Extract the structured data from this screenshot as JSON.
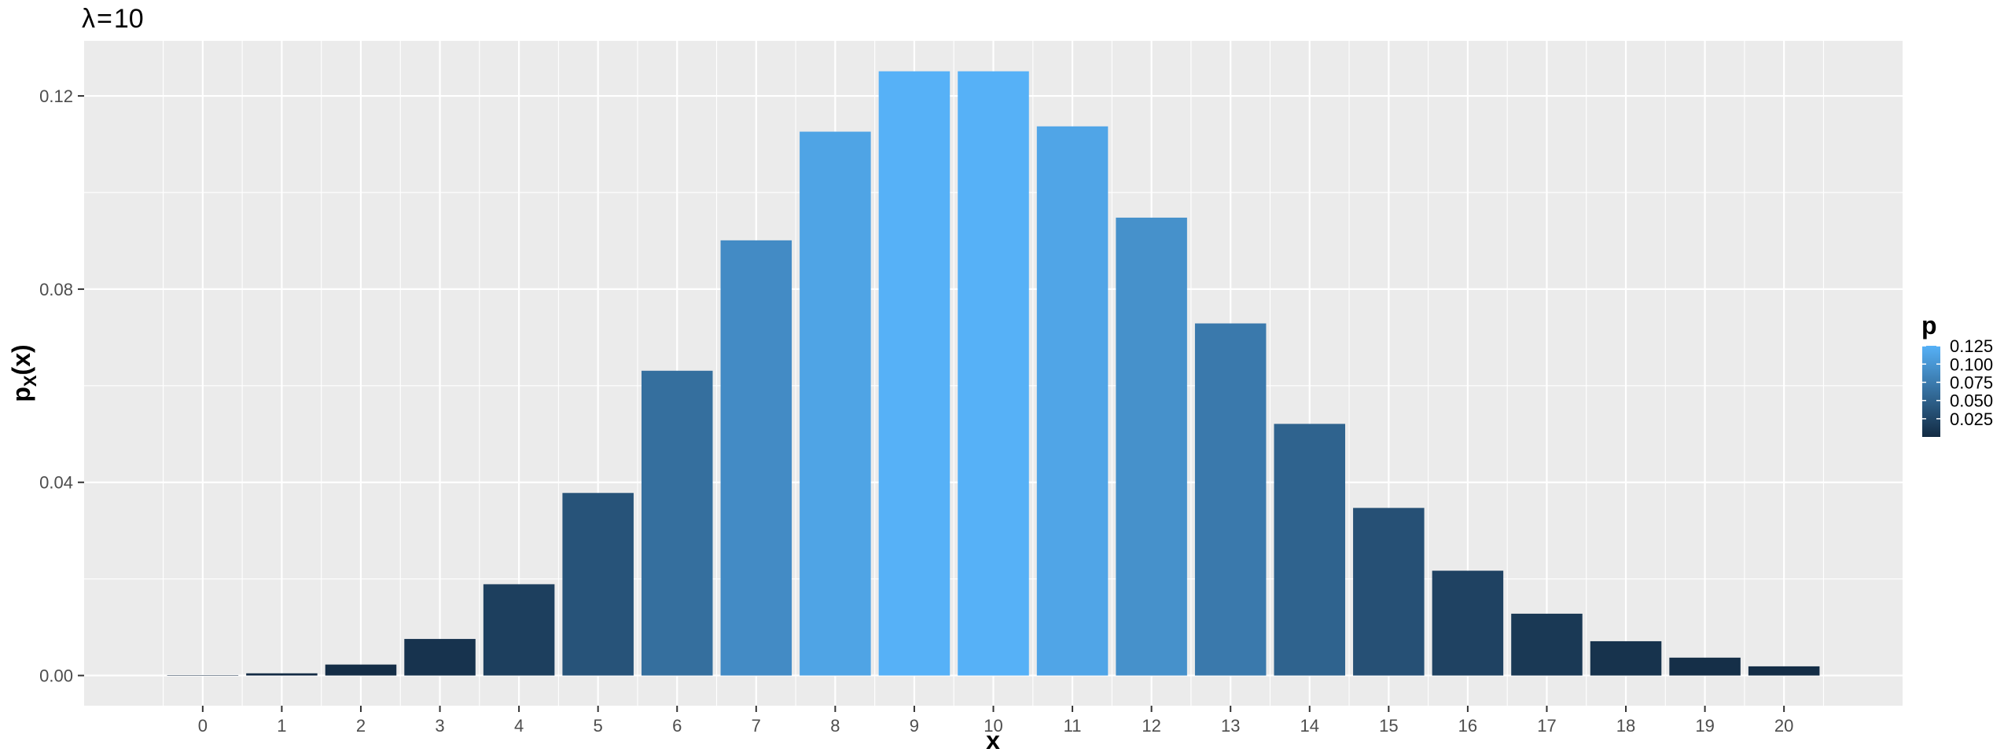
{
  "chart_data": {
    "type": "bar",
    "title_symbol": "λ",
    "title_eq": "=",
    "title_value": "10",
    "xlabel": "x",
    "ylabel_main": "p",
    "ylabel_sub": "X",
    "ylabel_arg": "(x)",
    "categories": [
      "0",
      "1",
      "2",
      "3",
      "4",
      "5",
      "6",
      "7",
      "8",
      "9",
      "10",
      "11",
      "12",
      "13",
      "14",
      "15",
      "16",
      "17",
      "18",
      "19",
      "20"
    ],
    "values": [
      4.54e-05,
      0.000454,
      0.00227,
      0.00757,
      0.0189,
      0.0378,
      0.0631,
      0.0901,
      0.1126,
      0.1251,
      0.1251,
      0.1137,
      0.0948,
      0.0729,
      0.0521,
      0.0347,
      0.0217,
      0.0128,
      0.0071,
      0.0037,
      0.0019
    ],
    "xlim": [
      -1.5,
      21.5
    ],
    "ylim": [
      -0.00625,
      0.1314
    ],
    "y_ticks": [
      0.0,
      0.04,
      0.08,
      0.12
    ],
    "y_tick_labels": [
      "0.00",
      "0.04",
      "0.08",
      "0.12"
    ],
    "grid": true,
    "legend": {
      "title": "p",
      "placement": "right",
      "range": [
        4.54e-05,
        0.1251
      ],
      "breaks": [
        0.025,
        0.05,
        0.075,
        0.1,
        0.125
      ],
      "labels": [
        "0.025",
        "0.050",
        "0.075",
        "0.100",
        "0.125"
      ],
      "color_low": "#132B43",
      "color_high": "#56B1F7"
    },
    "panel_background": "#EBEBEB",
    "grid_color": "#FFFFFF"
  }
}
